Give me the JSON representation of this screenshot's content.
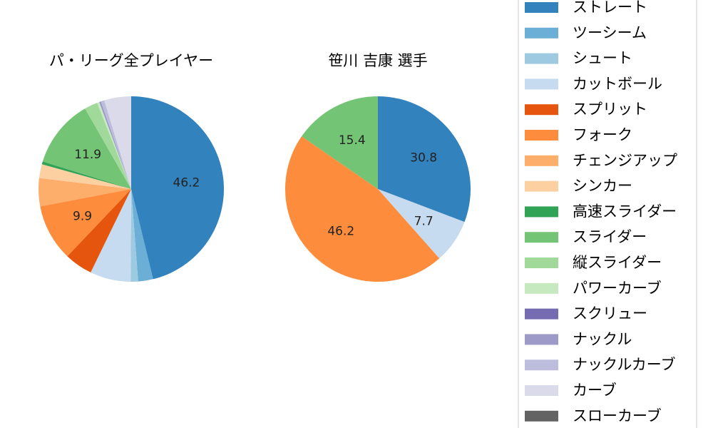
{
  "chart_data": [
    {
      "type": "pie",
      "title": "パ・リーグ全プレイヤー",
      "slices": [
        {
          "name": "ストレート",
          "value": 46.2,
          "label": "46.2"
        },
        {
          "name": "ツーシーム",
          "value": 2.6
        },
        {
          "name": "シュート",
          "value": 1.3
        },
        {
          "name": "カットボール",
          "value": 7.1
        },
        {
          "name": "スプリット",
          "value": 4.9
        },
        {
          "name": "フォーク",
          "value": 9.9,
          "label": "9.9"
        },
        {
          "name": "チェンジアップ",
          "value": 4.9
        },
        {
          "name": "シンカー",
          "value": 2.4
        },
        {
          "name": "高速スライダー",
          "value": 0.5
        },
        {
          "name": "スライダー",
          "value": 11.9,
          "label": "11.9"
        },
        {
          "name": "縦スライダー",
          "value": 2.3
        },
        {
          "name": "パワーカーブ",
          "value": 0.4
        },
        {
          "name": "ナックル",
          "value": 0.3
        },
        {
          "name": "ナックルカーブ",
          "value": 0.6
        },
        {
          "name": "カーブ",
          "value": 4.7
        }
      ]
    },
    {
      "type": "pie",
      "title": "笹川 吉康  選手",
      "slices": [
        {
          "name": "ストレート",
          "value": 30.8,
          "label": "30.8"
        },
        {
          "name": "カットボール",
          "value": 7.7,
          "label": "7.7"
        },
        {
          "name": "フォーク",
          "value": 46.2,
          "label": "46.2"
        },
        {
          "name": "スライダー",
          "value": 15.4,
          "label": "15.4"
        }
      ]
    }
  ],
  "legend": {
    "placement": "right",
    "items": [
      {
        "name": "ストレート",
        "color": "#3182bd"
      },
      {
        "name": "ツーシーム",
        "color": "#6baed6"
      },
      {
        "name": "シュート",
        "color": "#9ecae1"
      },
      {
        "name": "カットボール",
        "color": "#c6dbef"
      },
      {
        "name": "スプリット",
        "color": "#e6550d"
      },
      {
        "name": "フォーク",
        "color": "#fd8d3c"
      },
      {
        "name": "チェンジアップ",
        "color": "#fdae6b"
      },
      {
        "name": "シンカー",
        "color": "#fdd0a2"
      },
      {
        "name": "高速スライダー",
        "color": "#31a354"
      },
      {
        "name": "スライダー",
        "color": "#74c476"
      },
      {
        "name": "縦スライダー",
        "color": "#a1d99b"
      },
      {
        "name": "パワーカーブ",
        "color": "#c7e9c0"
      },
      {
        "name": "スクリュー",
        "color": "#756bb1"
      },
      {
        "name": "ナックル",
        "color": "#9e9ac8"
      },
      {
        "name": "ナックルカーブ",
        "color": "#bcbddc"
      },
      {
        "name": "カーブ",
        "color": "#dadaeb"
      },
      {
        "name": "スローカーブ",
        "color": "#636363"
      }
    ]
  }
}
